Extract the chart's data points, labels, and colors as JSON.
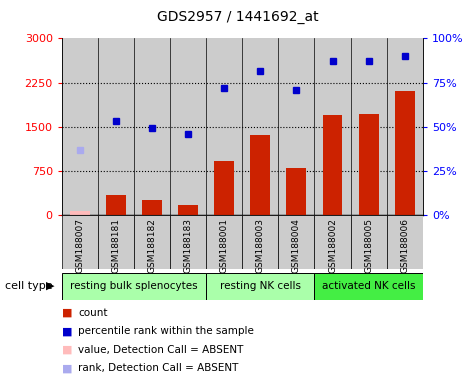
{
  "title": "GDS2957 / 1441692_at",
  "samples": [
    "GSM188007",
    "GSM188181",
    "GSM188182",
    "GSM188183",
    "GSM188001",
    "GSM188003",
    "GSM188004",
    "GSM188002",
    "GSM188005",
    "GSM188006"
  ],
  "bar_values": [
    65,
    340,
    250,
    175,
    920,
    1360,
    800,
    1700,
    1720,
    2100
  ],
  "bar_absent": [
    true,
    false,
    false,
    false,
    false,
    false,
    false,
    false,
    false,
    false
  ],
  "dot_values": [
    1100,
    1590,
    1480,
    1380,
    2160,
    2450,
    2130,
    2620,
    2620,
    2700
  ],
  "dot_absent": [
    true,
    false,
    false,
    false,
    false,
    false,
    false,
    false,
    false,
    false
  ],
  "ylim_left": [
    0,
    3000
  ],
  "ylim_right": [
    0,
    100
  ],
  "yticks_left": [
    0,
    750,
    1500,
    2250,
    3000
  ],
  "yticks_right": [
    0,
    25,
    50,
    75,
    100
  ],
  "ytick_labels_left": [
    "0",
    "750",
    "1500",
    "2250",
    "3000"
  ],
  "ytick_labels_right": [
    "0%",
    "25%",
    "50%",
    "75%",
    "100%"
  ],
  "cell_groups": [
    {
      "label": "resting bulk splenocytes",
      "start": 0,
      "end": 4,
      "color": "#aaffaa"
    },
    {
      "label": "resting NK cells",
      "start": 4,
      "end": 7,
      "color": "#aaffaa"
    },
    {
      "label": "activated NK cells",
      "start": 7,
      "end": 10,
      "color": "#44ee44"
    }
  ],
  "bar_color_present": "#cc2200",
  "bar_color_absent": "#ffbbbb",
  "dot_color_present": "#0000cc",
  "dot_color_absent": "#aaaaee",
  "col_bg_color": "#cccccc",
  "legend_items": [
    {
      "label": "count",
      "color": "#cc2200"
    },
    {
      "label": "percentile rank within the sample",
      "color": "#0000cc"
    },
    {
      "label": "value, Detection Call = ABSENT",
      "color": "#ffbbbb"
    },
    {
      "label": "rank, Detection Call = ABSENT",
      "color": "#aaaaee"
    }
  ],
  "cell_type_label": "cell type"
}
